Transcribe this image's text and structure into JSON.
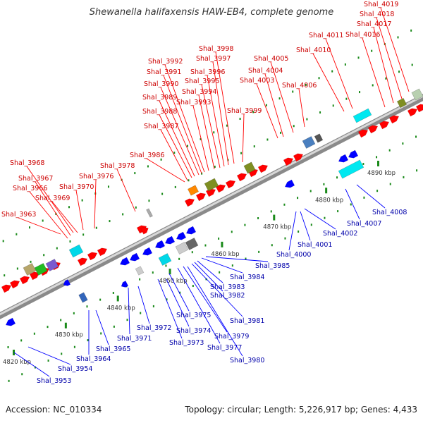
{
  "title": "Shewanella halifaxensis HAW-EB4, complete genome",
  "footer": {
    "accession": "Accession: NC_010334",
    "topology": "Topology: circular; Length: 5,226,917 bp; Genes: 4,433"
  },
  "colors": {
    "forward_gene": "#ff0000",
    "reverse_gene": "#0000ff",
    "forward_label": "#cc0000",
    "reverse_label": "#0000aa",
    "backbone": "#999999",
    "tick": "#1a8a1a"
  },
  "ticks": [
    {
      "label": "4820 kbp",
      "kbp": 4820
    },
    {
      "label": "4830 kbp",
      "kbp": 4830
    },
    {
      "label": "4840 kbp",
      "kbp": 4840
    },
    {
      "label": "4850 kbp",
      "kbp": 4850
    },
    {
      "label": "4860 kbp",
      "kbp": 4860
    },
    {
      "label": "4870 kbp",
      "kbp": 4870
    },
    {
      "label": "4880 kbp",
      "kbp": 4880
    },
    {
      "label": "4890 kbp",
      "kbp": 4890
    }
  ],
  "forward_labels": [
    "Shal_3963",
    "Shal_3966",
    "Shal_3967",
    "Shal_3968",
    "Shal_3969",
    "Shal_3970",
    "Shal_3976",
    "Shal_3978",
    "Shal_3986",
    "Shal_3987",
    "Shal_3988",
    "Shal_3989",
    "Shal_3990",
    "Shal_3991",
    "Shal_3992",
    "Shal_3993",
    "Shal_3994",
    "Shal_3995",
    "Shal_3996",
    "Shal_3997",
    "Shal_3998",
    "Shal_3999",
    "Shal_4003",
    "Shal_4004",
    "Shal_4005",
    "Shal_4006",
    "Shal_4010",
    "Shal_4011",
    "Shal_4016",
    "Shal_4017",
    "Shal_4018",
    "Shal_4019"
  ],
  "reverse_labels": [
    "Shal_3953",
    "Shal_3954",
    "Shal_3964",
    "Shal_3965",
    "Shal_3971",
    "Shal_3972",
    "Shal_3973",
    "Shal_3974",
    "Shal_3975",
    "Shal_3977",
    "Shal_3979",
    "Shal_3980",
    "Shal_3981",
    "Shal_3982",
    "Shal_3983",
    "Shal_3984",
    "Shal_3985",
    "Shal_4000",
    "Shal_4001",
    "Shal_4002",
    "Shal_4007",
    "Shal_4008"
  ]
}
